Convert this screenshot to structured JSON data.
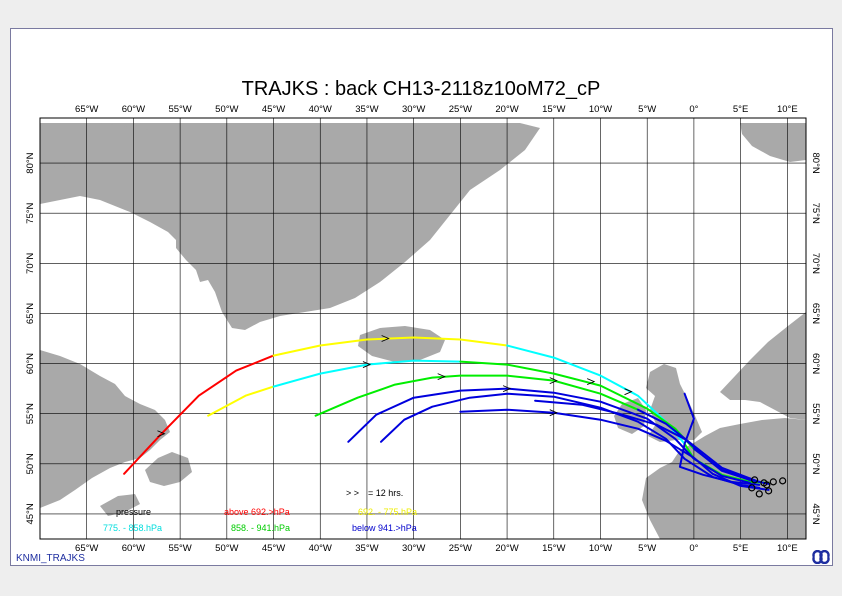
{
  "title": "TRAJKS : back CH13-2118z10oM72_cP",
  "footer": "KNMI_TRAJKS",
  "axes": {
    "lon_ticks": [
      {
        "v": -65,
        "label": "65°W"
      },
      {
        "v": -60,
        "label": "60°W"
      },
      {
        "v": -55,
        "label": "55°W"
      },
      {
        "v": -50,
        "label": "50°W"
      },
      {
        "v": -45,
        "label": "45°W"
      },
      {
        "v": -40,
        "label": "40°W"
      },
      {
        "v": -35,
        "label": "35°W"
      },
      {
        "v": -30,
        "label": "30°W"
      },
      {
        "v": -25,
        "label": "25°W"
      },
      {
        "v": -20,
        "label": "20°W"
      },
      {
        "v": -15,
        "label": "15°W"
      },
      {
        "v": -10,
        "label": "10°W"
      },
      {
        "v": -5,
        "label": "5°W"
      },
      {
        "v": 0,
        "label": "0°"
      },
      {
        "v": 5,
        "label": "5°E"
      },
      {
        "v": 10,
        "label": "10°E"
      }
    ],
    "lat_ticks": [
      {
        "v": 45,
        "label": "45°N"
      },
      {
        "v": 50,
        "label": "50°N"
      },
      {
        "v": 55,
        "label": "55°N"
      },
      {
        "v": 60,
        "label": "60°N"
      },
      {
        "v": 65,
        "label": "65°N"
      },
      {
        "v": 70,
        "label": "70°N"
      },
      {
        "v": 75,
        "label": "75°N"
      },
      {
        "v": 80,
        "label": "80°N"
      }
    ],
    "lon_range": [
      -70,
      12
    ],
    "lat_range": [
      42.5,
      84.5
    ]
  },
  "colors": {
    "land": "#a9a9a9",
    "above": "#ff0000",
    "band1": "#ffff00",
    "band2": "#00ffff",
    "band3": "#00ee00",
    "below": "#0000dd",
    "grid": "#000000"
  },
  "legend": {
    "arrow_label": "= 12 hrs.",
    "pressure_label": "pressure",
    "above_label": "above  692.>hPa",
    "band1_label": "692. -   775.hPa",
    "band2_label": "775. -   858.hPa",
    "band3_label": "858. -   941.hPa",
    "below_label": "below   941.>hPa"
  },
  "map_data": {
    "trajectories": [
      {
        "segments": [
          {
            "band": "above",
            "points": [
              [
                -61,
                49
              ],
              [
                -57,
                53
              ],
              [
                -53,
                56.8
              ],
              [
                -49,
                59.3
              ],
              [
                -45,
                60.8
              ]
            ]
          },
          {
            "band": "band1",
            "points": [
              [
                -45,
                60.8
              ],
              [
                -40,
                61.8
              ],
              [
                -35,
                62.4
              ],
              [
                -30,
                62.6
              ],
              [
                -25,
                62.4
              ],
              [
                -20,
                61.8
              ]
            ]
          },
          {
            "band": "band2",
            "points": [
              [
                -20,
                61.8
              ],
              [
                -15,
                60.6
              ],
              [
                -10,
                58.8
              ],
              [
                -6,
                56.8
              ],
              [
                -3,
                54.2
              ],
              [
                -1,
                52
              ]
            ]
          },
          {
            "band": "band3",
            "points": [
              [
                -1,
                52
              ],
              [
                0,
                50.5
              ],
              [
                3,
                48.9
              ],
              [
                6,
                48.2
              ],
              [
                8,
                48.1
              ]
            ]
          }
        ],
        "arrows": [
          [
            -57,
            53
          ],
          [
            -33,
            62.5
          ],
          [
            -7,
            57.2
          ]
        ]
      },
      {
        "segments": [
          {
            "band": "band1",
            "points": [
              [
                -52,
                54.8
              ],
              [
                -48,
                56.8
              ],
              [
                -45,
                57.7
              ]
            ]
          },
          {
            "band": "band2",
            "points": [
              [
                -45,
                57.7
              ],
              [
                -40,
                59
              ],
              [
                -35,
                59.9
              ],
              [
                -30,
                60.3
              ],
              [
                -25,
                60.2
              ]
            ]
          },
          {
            "band": "band3",
            "points": [
              [
                -25,
                60.2
              ],
              [
                -20,
                59.9
              ],
              [
                -15,
                59
              ],
              [
                -10,
                57.8
              ],
              [
                -5,
                55.5
              ],
              [
                -2,
                53.5
              ],
              [
                0,
                51.5
              ]
            ]
          },
          {
            "band": "below",
            "points": [
              [
                0,
                51.5
              ],
              [
                3,
                49.4
              ],
              [
                6,
                48.4
              ],
              [
                8,
                48
              ]
            ]
          }
        ],
        "arrows": [
          [
            -35,
            59.9
          ],
          [
            -11,
            58.2
          ]
        ]
      },
      {
        "segments": [
          {
            "band": "band3",
            "points": [
              [
                -40.5,
                54.8
              ],
              [
                -36,
                56.6
              ],
              [
                -32,
                57.9
              ],
              [
                -28,
                58.6
              ],
              [
                -25,
                58.8
              ],
              [
                -20,
                58.8
              ],
              [
                -15,
                58.3
              ],
              [
                -10,
                57
              ],
              [
                -6,
                55.4
              ]
            ]
          },
          {
            "band": "below",
            "points": [
              [
                -6,
                55.4
              ],
              [
                -3,
                54
              ],
              [
                0,
                51.8
              ],
              [
                3,
                49.6
              ],
              [
                7,
                48.2
              ]
            ]
          }
        ],
        "arrows": [
          [
            -27,
            58.7
          ],
          [
            -15,
            58.3
          ]
        ]
      },
      {
        "segments": [
          {
            "band": "below",
            "points": [
              [
                -37,
                52.2
              ],
              [
                -34,
                54.9
              ],
              [
                -30,
                56.6
              ],
              [
                -25,
                57.3
              ],
              [
                -20,
                57.5
              ],
              [
                -15,
                57.1
              ],
              [
                -10,
                56.2
              ],
              [
                -5,
                54.5
              ],
              [
                -2,
                52.5
              ],
              [
                0,
                50.5
              ],
              [
                3,
                48.8
              ],
              [
                6,
                48.1
              ]
            ]
          }
        ],
        "arrows": [
          [
            -20,
            57.5
          ]
        ]
      },
      {
        "segments": [
          {
            "band": "below",
            "points": [
              [
                -33.5,
                52.2
              ],
              [
                -31,
                54.4
              ],
              [
                -28,
                55.7
              ],
              [
                -24,
                56.6
              ],
              [
                -20,
                57
              ],
              [
                -15,
                56.7
              ],
              [
                -10,
                55.6
              ],
              [
                -6,
                54.2
              ],
              [
                -3,
                52.5
              ],
              [
                -1,
                50.5
              ],
              [
                2,
                48.7
              ],
              [
                5,
                47.9
              ],
              [
                7,
                47.6
              ]
            ]
          }
        ],
        "arrows": []
      },
      {
        "segments": [
          {
            "band": "below",
            "points": [
              [
                -25,
                55.2
              ],
              [
                -20,
                55.4
              ],
              [
                -15,
                55.1
              ],
              [
                -10,
                54.4
              ],
              [
                -6,
                53.5
              ],
              [
                -3,
                52.3
              ],
              [
                0,
                50.6
              ],
              [
                2,
                49
              ],
              [
                5,
                47.8
              ],
              [
                8,
                47.4
              ]
            ]
          }
        ],
        "arrows": [
          [
            -15,
            55.1
          ]
        ]
      },
      {
        "segments": [
          {
            "band": "below",
            "points": [
              [
                -17,
                56.3
              ],
              [
                -12,
                55.9
              ],
              [
                -8,
                55
              ],
              [
                -4,
                53.9
              ],
              [
                -1,
                52.5
              ],
              [
                1,
                50.8
              ],
              [
                3,
                49.3
              ],
              [
                6,
                48.4
              ]
            ]
          }
        ],
        "arrows": []
      },
      {
        "segments": [
          {
            "band": "below",
            "points": [
              [
                -1,
                57
              ],
              [
                0,
                54.5
              ],
              [
                -1,
                52
              ],
              [
                -1.5,
                49.7
              ],
              [
                1,
                48.9
              ],
              [
                4,
                48.2
              ],
              [
                7,
                47.9
              ]
            ]
          }
        ],
        "arrows": []
      }
    ],
    "end_points": [
      [
        6.2,
        47.6
      ],
      [
        7,
        47
      ],
      [
        7.5,
        48.1
      ],
      [
        8,
        47.3
      ],
      [
        8.5,
        48.2
      ],
      [
        9.5,
        48.3
      ],
      [
        7.8,
        47.9
      ],
      [
        6.5,
        48.4
      ]
    ]
  }
}
